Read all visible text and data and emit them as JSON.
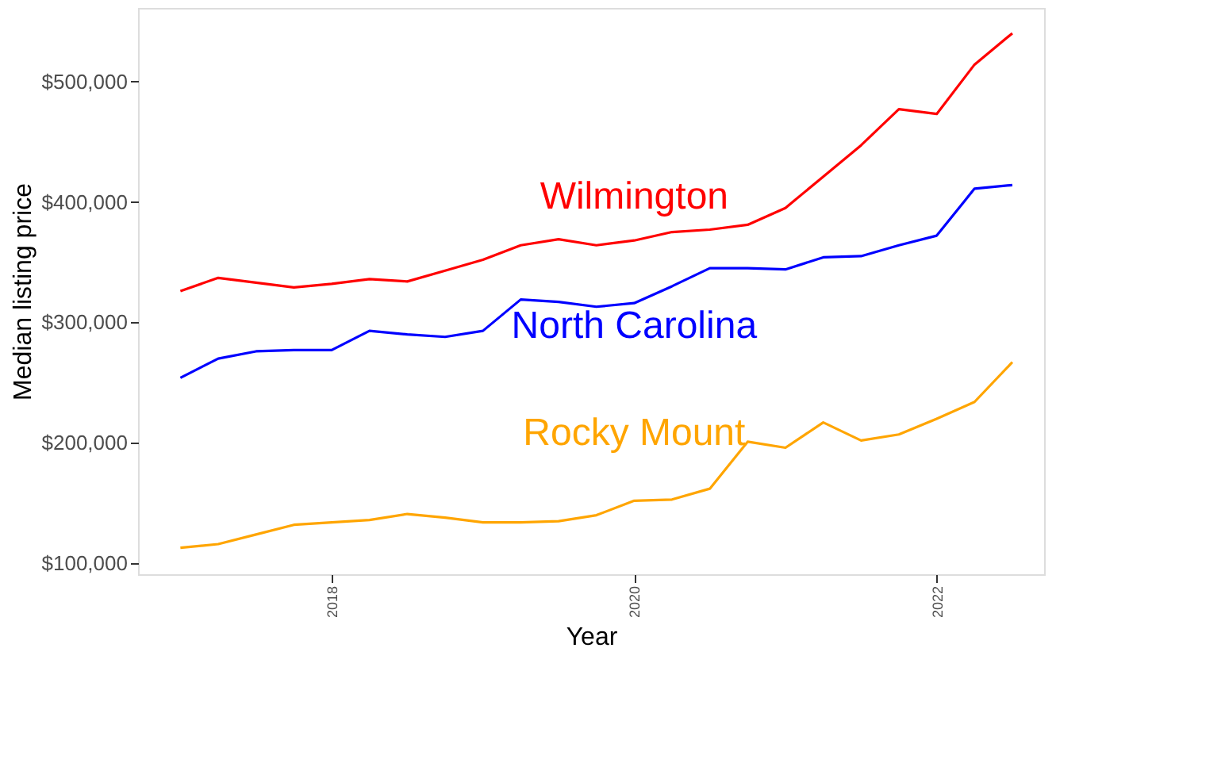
{
  "chart_data": {
    "type": "line",
    "xlabel": "Year",
    "ylabel": "Median listing price",
    "x": [
      2017,
      2017.25,
      2017.5,
      2017.75,
      2018,
      2018.25,
      2018.5,
      2018.75,
      2019,
      2019.25,
      2019.5,
      2019.75,
      2020,
      2020.25,
      2020.5,
      2020.75,
      2021,
      2021.25,
      2021.5,
      2021.75,
      2022,
      2022.25,
      2022.5
    ],
    "series": [
      {
        "name": "Wilmington",
        "color": "#ff0000",
        "values": [
          326000,
          337000,
          333000,
          329000,
          332000,
          336000,
          334000,
          343000,
          352000,
          364000,
          369000,
          364000,
          368000,
          375000,
          377000,
          381000,
          395000,
          421000,
          447000,
          477000,
          473000,
          514000,
          540000
        ]
      },
      {
        "name": "North Carolina",
        "color": "#0000ff",
        "values": [
          254000,
          270000,
          276000,
          277000,
          277000,
          293000,
          290000,
          288000,
          293000,
          319000,
          317000,
          313000,
          316000,
          330000,
          345000,
          345000,
          344000,
          354000,
          355000,
          364000,
          372000,
          411000,
          414000
        ]
      },
      {
        "name": "Rocky Mount",
        "color": "#ffa500",
        "values": [
          113000,
          116000,
          124000,
          132000,
          134000,
          136000,
          141000,
          138000,
          134000,
          134000,
          135000,
          140000,
          152000,
          153000,
          162000,
          201000,
          196000,
          217000,
          202000,
          207000,
          220000,
          234000,
          267000
        ]
      }
    ],
    "xlim": [
      2016.72,
      2022.71
    ],
    "xticks": [
      2018,
      2020,
      2022
    ],
    "ylim": [
      91000,
      561000
    ],
    "yticks": [
      {
        "value": 100000,
        "label": "$100,000"
      },
      {
        "value": 200000,
        "label": "$200,000"
      },
      {
        "value": 300000,
        "label": "$300,000"
      },
      {
        "value": 400000,
        "label": "$400,000"
      },
      {
        "value": 500000,
        "label": "$500,000"
      }
    ],
    "grid": false,
    "line_style": "solid",
    "marker": "none"
  }
}
